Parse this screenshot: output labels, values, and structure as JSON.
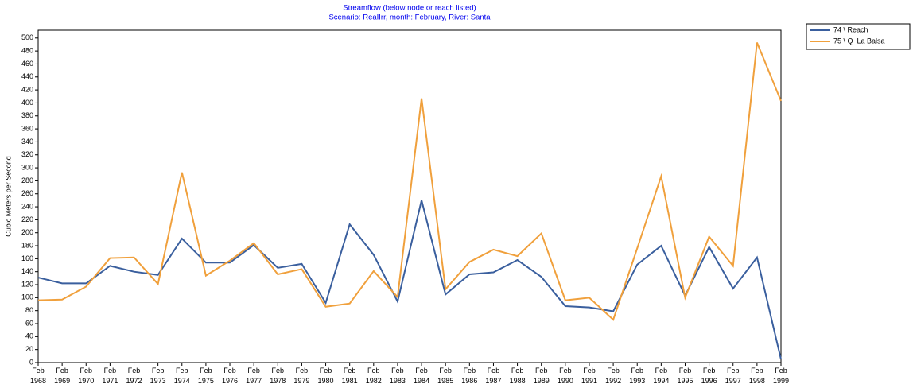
{
  "chart_data": {
    "type": "line",
    "title": "Streamflow (below node or reach listed)",
    "subtitle": "Scenario: ReaIIrr,  month: February,  River: Santa",
    "y_label": "Cubic Meters per Second",
    "categories": [
      "Feb 1968",
      "Feb 1969",
      "Feb 1970",
      "Feb 1971",
      "Feb 1972",
      "Feb 1973",
      "Feb 1974",
      "Feb 1975",
      "Feb 1976",
      "Feb 1977",
      "Feb 1978",
      "Feb 1979",
      "Feb 1980",
      "Feb 1981",
      "Feb 1982",
      "Feb 1983",
      "Feb 1984",
      "Feb 1985",
      "Feb 1986",
      "Feb 1987",
      "Feb 1988",
      "Feb 1989",
      "Feb 1990",
      "Feb 1991",
      "Feb 1992",
      "Feb 1993",
      "Feb 1994",
      "Feb 1995",
      "Feb 1996",
      "Feb 1997",
      "Feb 1998",
      "Feb 1999"
    ],
    "series": [
      {
        "name": "74 \\ Reach",
        "color": "#3a5f9e",
        "values": [
          131,
          122,
          122,
          149,
          140,
          135,
          191,
          154,
          154,
          181,
          146,
          152,
          92,
          213,
          166,
          94,
          250,
          105,
          136,
          139,
          158,
          132,
          87,
          85,
          79,
          151,
          180,
          103,
          178,
          114,
          162,
          5
        ]
      },
      {
        "name": "75 \\ Q_La Balsa",
        "color": "#f0a03c",
        "values": [
          96,
          97,
          117,
          161,
          162,
          121,
          293,
          134,
          157,
          184,
          136,
          144,
          86,
          91,
          141,
          101,
          407,
          113,
          155,
          174,
          164,
          199,
          96,
          100,
          66,
          176,
          287,
          100,
          194,
          149,
          493,
          403
        ]
      }
    ],
    "ylim": [
      0,
      512
    ],
    "yticks": [
      0,
      20,
      40,
      60,
      80,
      100,
      120,
      140,
      160,
      180,
      200,
      220,
      240,
      260,
      280,
      300,
      320,
      340,
      360,
      380,
      400,
      420,
      440,
      460,
      480,
      500
    ],
    "legend": "top-right"
  }
}
